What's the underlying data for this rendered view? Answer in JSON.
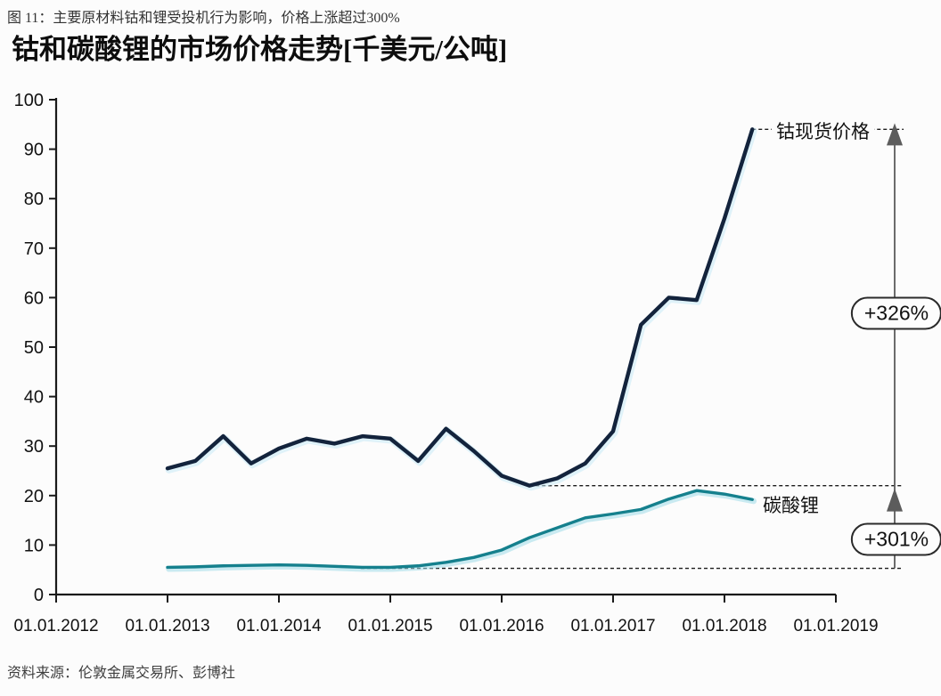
{
  "header": {
    "caption": "图 11：主要原材料钴和锂受投机行为影响，价格上涨超过300%",
    "title": "钴和碳酸锂的市场价格走势[千美元/公吨]"
  },
  "chart_data": {
    "type": "line",
    "x": [
      2013.0,
      2013.25,
      2013.5,
      2013.75,
      2014.0,
      2014.25,
      2014.5,
      2014.75,
      2015.0,
      2015.25,
      2015.5,
      2015.75,
      2016.0,
      2016.25,
      2016.5,
      2016.75,
      2017.0,
      2017.25,
      2017.5,
      2017.75,
      2018.0,
      2018.25
    ],
    "series": [
      {
        "name": "钴现货价格",
        "color": "#13233c",
        "halo": "#c7e9f5",
        "width": 4.4,
        "values": [
          25.5,
          27,
          32,
          26.5,
          29.5,
          31.5,
          30.5,
          32,
          31.5,
          27,
          33.5,
          29,
          24,
          22,
          23.5,
          26.5,
          33,
          54.5,
          60,
          59.5,
          76,
          94
        ]
      },
      {
        "name": "碳酸锂",
        "color": "#15808d",
        "halo": "#9fdbe8",
        "width": 3.4,
        "values": [
          5.5,
          5.6,
          5.8,
          5.9,
          6.0,
          5.9,
          5.7,
          5.5,
          5.5,
          5.8,
          6.5,
          7.5,
          9.0,
          11.5,
          13.5,
          15.5,
          16.3,
          17.2,
          19.3,
          21.0,
          20.3,
          19.2
        ]
      }
    ],
    "title": "钴和碳酸锂的市场价格走势[千美元/公吨]",
    "xlabel": "",
    "ylabel": "",
    "ylim": [
      0,
      100
    ],
    "y_ticks": [
      0,
      10,
      20,
      30,
      40,
      50,
      60,
      70,
      80,
      90,
      100
    ],
    "x_tick_years": [
      2012,
      2013,
      2014,
      2015,
      2016,
      2017,
      2018,
      2019
    ],
    "x_tick_labels": [
      "01.01.2012",
      "01.01.2013",
      "01.01.2014",
      "01.01.2015",
      "01.01.2016",
      "01.01.2017",
      "01.01.2018",
      "01.01.2019"
    ],
    "grid": false,
    "legend_position": "inline-annotations"
  },
  "annotations": {
    "cobalt_label": "钴现货价格",
    "lithium_label": "碳酸锂",
    "cobalt_change": "+326%",
    "lithium_change": "+301%",
    "guide_top_value": 94,
    "guide_mid_value": 22,
    "guide_bottom_value": 5.3
  },
  "footer": {
    "source": "资料来源：伦敦金属交易所、彭博社"
  },
  "colors": {
    "cobalt_line": "#13233c",
    "lithium_line": "#15808d",
    "halo_cobalt": "#c7e9f5",
    "halo_lithium": "#9fdbe8",
    "axis": "#1a1a1a",
    "guide_dash": "#1c1c1c",
    "arrow": "#5c5c5c",
    "background": "#fcfcfc"
  }
}
